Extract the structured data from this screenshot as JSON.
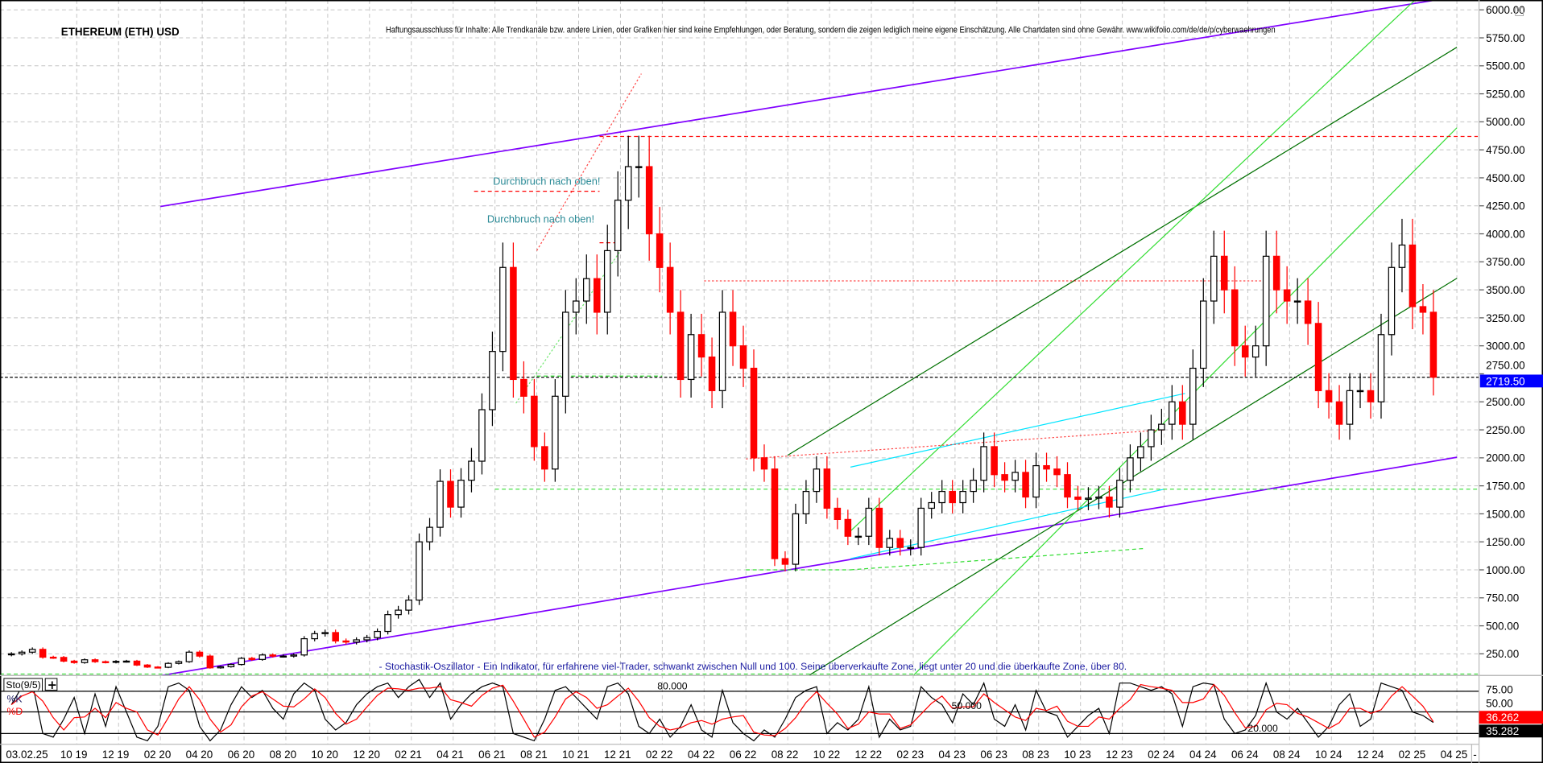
{
  "header": {
    "title": "ETHEREUM (ETH) USD",
    "disclaimer": "Haftungsausschluss für Inhalte: Alle Trendkanäle bzw. andere Linien, oder Grafiken hier sind keine Empfehlungen, oder Beratung, sondern die zeigen lediglich meine eigene Einschätzung. Alle Chartdaten sind ohne Gewähr.  www.wikifolio.com/de/de/p/cyberwaehrungen"
  },
  "cursor_date": "03.02.25",
  "indicator": {
    "name": "Sto(9/5)",
    "add_button": "+",
    "k_label": "%K",
    "d_label": "%D",
    "description": "- Stochastik-Oszillator - Ein Indikator, für erfahrene viel-Trader, schwankt zwischen Null und 100. Seine überverkaufte Zone, liegt unter 20 und die überkaufte Zone, über 80.",
    "level_labels": [
      "80.000",
      "50.000",
      "20.000"
    ],
    "y_ticks": [
      "75.00",
      "50.00"
    ],
    "d_value": "36.262",
    "k_value": "35.282"
  },
  "colors": {
    "down_candle": "#ff0000",
    "up_candle": "#000000",
    "channel_purple": "#8000ff",
    "dark_green": "#007000",
    "light_green": "#33dd33",
    "cyan": "#00e5ff",
    "annotation_teal": "#2a8a96",
    "price_badge": "#0000ff",
    "k_line": "#000000",
    "d_line": "#ff0000"
  },
  "chart_data": [
    {
      "type": "candlestick",
      "title": "ETHEREUM (ETH) USD",
      "x_start": "2019-06",
      "x_step": "half-month",
      "close": [
        250,
        265,
        290,
        220,
        218,
        185,
        172,
        197,
        180,
        175,
        183,
        185,
        150,
        132,
        130,
        165,
        180,
        265,
        230,
        125,
        135,
        155,
        210,
        200,
        240,
        230,
        230,
        240,
        385,
        430,
        440,
        365,
        355,
        375,
        395,
        450,
        600,
        640,
        730,
        1250,
        1380,
        1790,
        1560,
        1800,
        1970,
        2430,
        2950,
        3700,
        2700,
        2550,
        2100,
        1900,
        2550,
        3300,
        3400,
        3600,
        3300,
        3850,
        4300,
        4600,
        4600,
        4000,
        3700,
        3300,
        2700,
        3100,
        2900,
        2600,
        3300,
        3000,
        2800,
        2000,
        1900,
        1100,
        1050,
        1500,
        1700,
        1900,
        1550,
        1450,
        1300,
        1300,
        1550,
        1200,
        1280,
        1200,
        1200,
        1550,
        1600,
        1700,
        1600,
        1700,
        1800,
        2100,
        1850,
        1800,
        1870,
        1650,
        1930,
        1900,
        1850,
        1650,
        1630,
        1640,
        1650,
        1560,
        1800,
        2000,
        2100,
        2250,
        2300,
        2500,
        2300,
        2800,
        3400,
        3800,
        3500,
        3000,
        2900,
        3000,
        3800,
        3500,
        3400,
        3400,
        3200,
        2600,
        2500,
        2300,
        2600,
        2600,
        2500,
        3100,
        3700,
        3900,
        3350,
        3300,
        2720
      ],
      "ylim": [
        0,
        6100
      ],
      "y_ticks": [
        "6000.00",
        "5750.00",
        "5500.00",
        "5250.00",
        "5000.00",
        "4750.00",
        "4500.00",
        "4250.00",
        "4000.00",
        "3750.00",
        "3500.00",
        "3250.00",
        "3000.00",
        "2750.00",
        "2500.00",
        "2250.00",
        "2000.00",
        "1750.00",
        "1500.00",
        "1250.00",
        "1000.00",
        "750.00",
        "500.00",
        "250.00"
      ],
      "x_ticks": [
        {
          "date": "2019-10",
          "label": "10 19"
        },
        {
          "date": "2019-12",
          "label": "12 19"
        },
        {
          "date": "2020-02",
          "label": "02 20"
        },
        {
          "date": "2020-04",
          "label": "04 20"
        },
        {
          "date": "2020-06",
          "label": "06 20"
        },
        {
          "date": "2020-08",
          "label": "08 20"
        },
        {
          "date": "2020-10",
          "label": "10 20"
        },
        {
          "date": "2020-12",
          "label": "12 20"
        },
        {
          "date": "2021-02",
          "label": "02 21"
        },
        {
          "date": "2021-04",
          "label": "04 21"
        },
        {
          "date": "2021-06",
          "label": "06 21"
        },
        {
          "date": "2021-08",
          "label": "08 21"
        },
        {
          "date": "2021-10",
          "label": "10 21"
        },
        {
          "date": "2021-12",
          "label": "12 21"
        },
        {
          "date": "2022-02",
          "label": "02 22"
        },
        {
          "date": "2022-04",
          "label": "04 22"
        },
        {
          "date": "2022-06",
          "label": "06 22"
        },
        {
          "date": "2022-08",
          "label": "08 22"
        },
        {
          "date": "2022-10",
          "label": "10 22"
        },
        {
          "date": "2022-12",
          "label": "12 22"
        },
        {
          "date": "2023-02",
          "label": "02 23"
        },
        {
          "date": "2023-04",
          "label": "04 23"
        },
        {
          "date": "2023-06",
          "label": "06 23"
        },
        {
          "date": "2023-08",
          "label": "08 23"
        },
        {
          "date": "2023-10",
          "label": "10 23"
        },
        {
          "date": "2023-12",
          "label": "12 23"
        },
        {
          "date": "2024-02",
          "label": "02 24"
        },
        {
          "date": "2024-04",
          "label": "04 24"
        },
        {
          "date": "2024-06",
          "label": "06 24"
        },
        {
          "date": "2024-08",
          "label": "08 24"
        },
        {
          "date": "2024-10",
          "label": "10 24"
        },
        {
          "date": "2024-12",
          "label": "12 24"
        },
        {
          "date": "2025-02",
          "label": "02 25"
        },
        {
          "date": "2025-04",
          "label": "04 25"
        }
      ],
      "last_price": "2719.50",
      "last_price_value": 2719.5,
      "grid": true,
      "annotations": [
        {
          "text": "Durchbruch nach oben!",
          "date": "2021-06",
          "price": 4440
        },
        {
          "text": "Durchbruch nach oben!",
          "date": "2021-06",
          "price": 4100
        }
      ],
      "trendlines": [
        {
          "name": "upper-purple-channel",
          "color": "channel_purple",
          "style": "solid",
          "from": [
            "2020-02",
            4244
          ],
          "to": [
            "2025-03",
            6088
          ]
        },
        {
          "name": "lower-purple-channel",
          "color": "channel_purple",
          "style": "solid",
          "from": [
            "2020-02",
            55
          ],
          "to": [
            "2025-04",
            2005
          ]
        },
        {
          "name": "dark-green-upper",
          "color": "dark_green",
          "style": "solid",
          "from": [
            "2022-08",
            2023
          ],
          "to": [
            "2025-04",
            5666
          ]
        },
        {
          "name": "dark-green-lower",
          "color": "dark_green",
          "style": "solid",
          "from": [
            "2022-09",
            56
          ],
          "to": [
            "2025-04",
            3603
          ]
        },
        {
          "name": "light-green-steep",
          "color": "light_green",
          "style": "solid",
          "from": [
            "2022-11",
            1346
          ],
          "to": [
            "2025-02",
            6088
          ]
        },
        {
          "name": "light-green-second",
          "color": "light_green",
          "style": "solid",
          "from": [
            "2023-02",
            56
          ],
          "to": [
            "2025-04",
            4947
          ]
        },
        {
          "name": "cyan-upper",
          "color": "cyan",
          "style": "solid",
          "from": [
            "2022-11",
            1917
          ],
          "to": [
            "2024-03",
            2575
          ]
        },
        {
          "name": "cyan-lower",
          "color": "cyan",
          "style": "solid",
          "from": [
            "2022-11",
            1100
          ],
          "to": [
            "2024-02",
            1720
          ]
        },
        {
          "name": "green-dotted-2021",
          "color": "light_green",
          "style": "dotted",
          "from": [
            "2021-07",
            2488
          ],
          "to": [
            "2021-12",
            3849
          ]
        },
        {
          "name": "red-dotted-2021",
          "color": "down_candle",
          "style": "dotted",
          "from": [
            "2021-08",
            3850
          ],
          "to": [
            "2022-01",
            5430
          ]
        },
        {
          "name": "red-dotted-2022-2024",
          "color": "down_candle",
          "style": "dotted",
          "from": [
            "2022-06",
            1990
          ],
          "to": [
            "2024-02",
            2250
          ]
        },
        {
          "name": "green-dashed-2022-2024",
          "color": "light_green",
          "style": "dashed",
          "from": [
            "2022-11",
            1000
          ],
          "to": [
            "2024-01",
            1190
          ]
        },
        {
          "name": "red-horizontal-ath",
          "color": "down_candle",
          "style": "dashed",
          "from": [
            "2021-11",
            4870
          ],
          "to": [
            "2025-05",
            4870
          ]
        },
        {
          "name": "red-horizontal-2021-top",
          "color": "down_candle",
          "style": "dashed",
          "from": [
            "2021-05",
            4380
          ],
          "to": [
            "2021-11",
            4380
          ]
        },
        {
          "name": "red-horizontal-3920",
          "color": "down_candle",
          "style": "dashed",
          "from": [
            "2021-11",
            3920
          ],
          "to": [
            "2021-12",
            3920
          ]
        },
        {
          "name": "red-horizontal-3580",
          "color": "down_candle",
          "style": "dotted",
          "from": [
            "2022-04",
            3580
          ],
          "to": [
            "2024-07",
            3580
          ]
        },
        {
          "name": "green-horizontal-2730",
          "color": "light_green",
          "style": "dashed",
          "from": [
            "2021-08",
            2730
          ],
          "to": [
            "2022-02",
            2730
          ]
        },
        {
          "name": "green-horizontal-1720",
          "color": "light_green",
          "style": "dashed",
          "from": [
            "2021-06",
            1720
          ],
          "to": [
            "2025-05",
            1720
          ]
        },
        {
          "name": "green-horizontal-1000",
          "color": "light_green",
          "style": "dashed",
          "from": [
            "2022-06",
            1000
          ],
          "to": [
            "2022-11",
            1000
          ]
        },
        {
          "name": "green-horizontal-bottom",
          "color": "light_green",
          "style": "dashed",
          "from": [
            "2019-06",
            70
          ],
          "to": [
            "2025-05",
            70
          ]
        }
      ]
    },
    {
      "type": "line",
      "title": "Sto(9/5)",
      "x_start": "2019-06",
      "x_step": "half-month",
      "ylim": [
        0,
        100
      ],
      "levels": [
        80,
        50,
        20
      ],
      "series": [
        {
          "name": "%K",
          "values": [
            60,
            85,
            90,
            20,
            15,
            40,
            70,
            20,
            75,
            30,
            85,
            50,
            15,
            10,
            30,
            85,
            90,
            80,
            30,
            10,
            25,
            60,
            85,
            70,
            80,
            55,
            40,
            75,
            90,
            80,
            40,
            25,
            35,
            60,
            75,
            85,
            90,
            70,
            85,
            95,
            70,
            90,
            40,
            60,
            75,
            85,
            90,
            85,
            20,
            15,
            10,
            40,
            80,
            85,
            70,
            55,
            40,
            85,
            90,
            75,
            30,
            20,
            40,
            15,
            30,
            60,
            25,
            15,
            80,
            35,
            20,
            10,
            25,
            15,
            40,
            70,
            80,
            85,
            20,
            35,
            25,
            40,
            85,
            15,
            40,
            25,
            30,
            85,
            70,
            60,
            35,
            75,
            60,
            90,
            40,
            30,
            60,
            25,
            80,
            50,
            45,
            15,
            30,
            45,
            55,
            20,
            90,
            90,
            85,
            80,
            85,
            75,
            30,
            85,
            90,
            88,
            40,
            20,
            25,
            45,
            90,
            50,
            40,
            55,
            35,
            15,
            30,
            60,
            75,
            30,
            40,
            90,
            85,
            80,
            50,
            45,
            35.282
          ]
        },
        {
          "name": "%D",
          "values": [
            60,
            72,
            78,
            65,
            42,
            25,
            42,
            43,
            55,
            42,
            63,
            55,
            50,
            25,
            18,
            42,
            68,
            85,
            67,
            40,
            22,
            32,
            57,
            72,
            78,
            68,
            58,
            57,
            68,
            82,
            70,
            48,
            33,
            40,
            57,
            73,
            83,
            82,
            80,
            83,
            83,
            85,
            67,
            63,
            58,
            73,
            83,
            87,
            65,
            40,
            15,
            22,
            43,
            68,
            78,
            70,
            55,
            60,
            72,
            83,
            65,
            42,
            30,
            25,
            28,
            35,
            38,
            33,
            40,
            43,
            45,
            22,
            18,
            17,
            27,
            42,
            63,
            78,
            62,
            47,
            27,
            33,
            50,
            47,
            47,
            27,
            32,
            47,
            62,
            72,
            55,
            57,
            57,
            75,
            63,
            53,
            43,
            38,
            55,
            52,
            58,
            37,
            30,
            30,
            43,
            40,
            55,
            67,
            88,
            85,
            83,
            80,
            63,
            63,
            68,
            88,
            73,
            49,
            28,
            30,
            53,
            62,
            60,
            48,
            43,
            35,
            27,
            35,
            55,
            55,
            48,
            53,
            72,
            85,
            72,
            58,
            36.262
          ]
        }
      ]
    }
  ]
}
